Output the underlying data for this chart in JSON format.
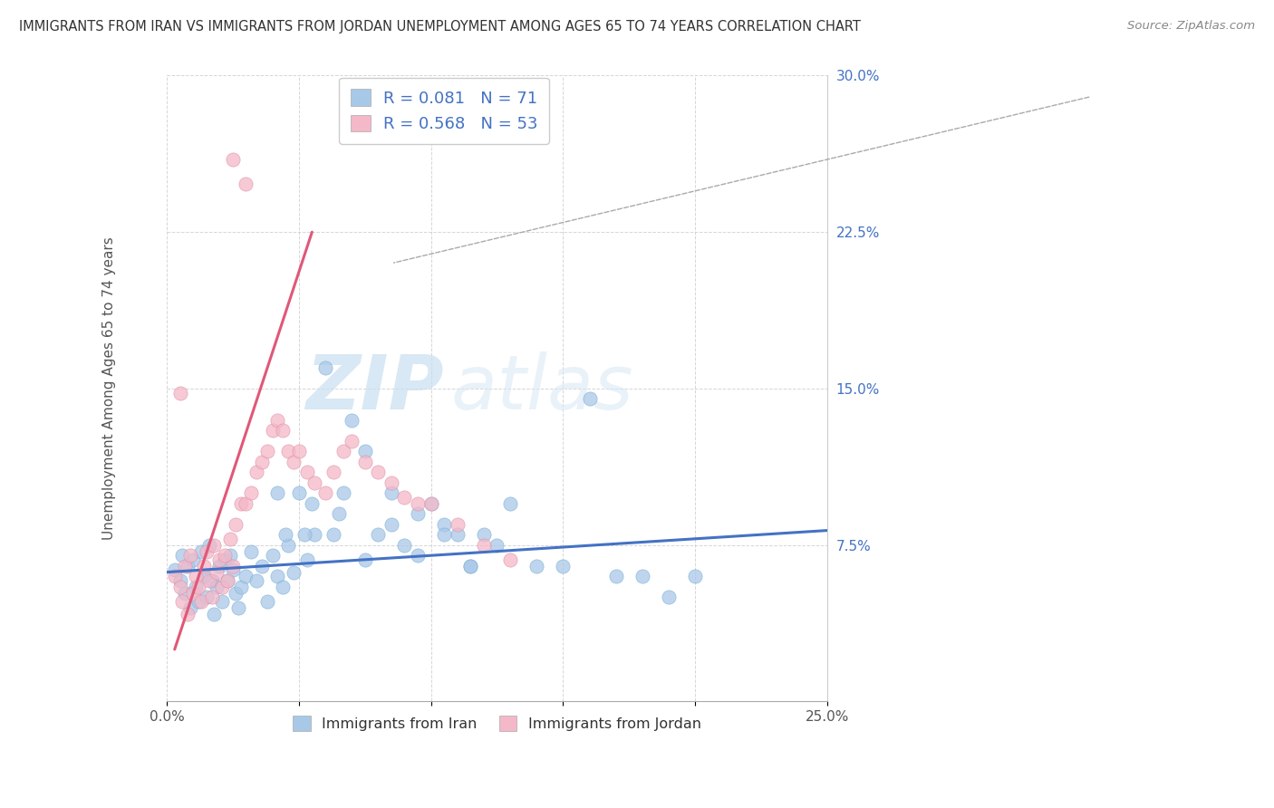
{
  "title": "IMMIGRANTS FROM IRAN VS IMMIGRANTS FROM JORDAN UNEMPLOYMENT AMONG AGES 65 TO 74 YEARS CORRELATION CHART",
  "source": "Source: ZipAtlas.com",
  "ylabel": "Unemployment Among Ages 65 to 74 years",
  "xlim": [
    0.0,
    0.25
  ],
  "ylim": [
    0.0,
    0.3
  ],
  "iran_R": 0.081,
  "iran_N": 71,
  "jordan_R": 0.568,
  "jordan_N": 53,
  "iran_color": "#a8c8e8",
  "iran_edge_color": "#7aafd4",
  "iran_line_color": "#4472c4",
  "jordan_color": "#f4b8c8",
  "jordan_edge_color": "#e090a8",
  "jordan_line_color": "#e05878",
  "watermark_zip": "ZIP",
  "watermark_atlas": "atlas",
  "iran_scatter_x": [
    0.003,
    0.005,
    0.006,
    0.007,
    0.008,
    0.009,
    0.01,
    0.011,
    0.012,
    0.013,
    0.014,
    0.015,
    0.016,
    0.017,
    0.018,
    0.019,
    0.02,
    0.021,
    0.022,
    0.023,
    0.024,
    0.025,
    0.026,
    0.027,
    0.028,
    0.03,
    0.032,
    0.034,
    0.036,
    0.038,
    0.04,
    0.042,
    0.044,
    0.046,
    0.048,
    0.05,
    0.053,
    0.056,
    0.06,
    0.063,
    0.067,
    0.07,
    0.075,
    0.08,
    0.085,
    0.09,
    0.095,
    0.1,
    0.105,
    0.11,
    0.115,
    0.12,
    0.125,
    0.13,
    0.14,
    0.15,
    0.16,
    0.17,
    0.18,
    0.19,
    0.2,
    0.045,
    0.055,
    0.065,
    0.075,
    0.085,
    0.095,
    0.105,
    0.115,
    0.042,
    0.052
  ],
  "iran_scatter_y": [
    0.063,
    0.058,
    0.07,
    0.052,
    0.065,
    0.045,
    0.068,
    0.055,
    0.048,
    0.072,
    0.06,
    0.05,
    0.075,
    0.058,
    0.042,
    0.055,
    0.065,
    0.048,
    0.068,
    0.058,
    0.07,
    0.063,
    0.052,
    0.045,
    0.055,
    0.06,
    0.072,
    0.058,
    0.065,
    0.048,
    0.07,
    0.06,
    0.055,
    0.075,
    0.062,
    0.1,
    0.068,
    0.08,
    0.16,
    0.08,
    0.1,
    0.135,
    0.068,
    0.08,
    0.1,
    0.075,
    0.07,
    0.095,
    0.085,
    0.08,
    0.065,
    0.08,
    0.075,
    0.095,
    0.065,
    0.065,
    0.145,
    0.06,
    0.06,
    0.05,
    0.06,
    0.08,
    0.095,
    0.09,
    0.12,
    0.085,
    0.09,
    0.08,
    0.065,
    0.1,
    0.08
  ],
  "jordan_scatter_x": [
    0.003,
    0.005,
    0.006,
    0.007,
    0.008,
    0.009,
    0.01,
    0.011,
    0.012,
    0.013,
    0.014,
    0.015,
    0.016,
    0.017,
    0.018,
    0.019,
    0.02,
    0.021,
    0.022,
    0.023,
    0.024,
    0.025,
    0.026,
    0.028,
    0.03,
    0.032,
    0.034,
    0.036,
    0.038,
    0.04,
    0.042,
    0.044,
    0.046,
    0.048,
    0.05,
    0.053,
    0.056,
    0.06,
    0.063,
    0.067,
    0.07,
    0.075,
    0.08,
    0.085,
    0.09,
    0.095,
    0.1,
    0.11,
    0.12,
    0.13,
    0.005,
    0.025,
    0.03
  ],
  "jordan_scatter_y": [
    0.06,
    0.055,
    0.048,
    0.065,
    0.042,
    0.07,
    0.052,
    0.06,
    0.055,
    0.048,
    0.065,
    0.072,
    0.058,
    0.05,
    0.075,
    0.062,
    0.068,
    0.055,
    0.07,
    0.058,
    0.078,
    0.065,
    0.085,
    0.095,
    0.095,
    0.1,
    0.11,
    0.115,
    0.12,
    0.13,
    0.135,
    0.13,
    0.12,
    0.115,
    0.12,
    0.11,
    0.105,
    0.1,
    0.11,
    0.12,
    0.125,
    0.115,
    0.11,
    0.105,
    0.098,
    0.095,
    0.095,
    0.085,
    0.075,
    0.068,
    0.148,
    0.26,
    0.248
  ]
}
